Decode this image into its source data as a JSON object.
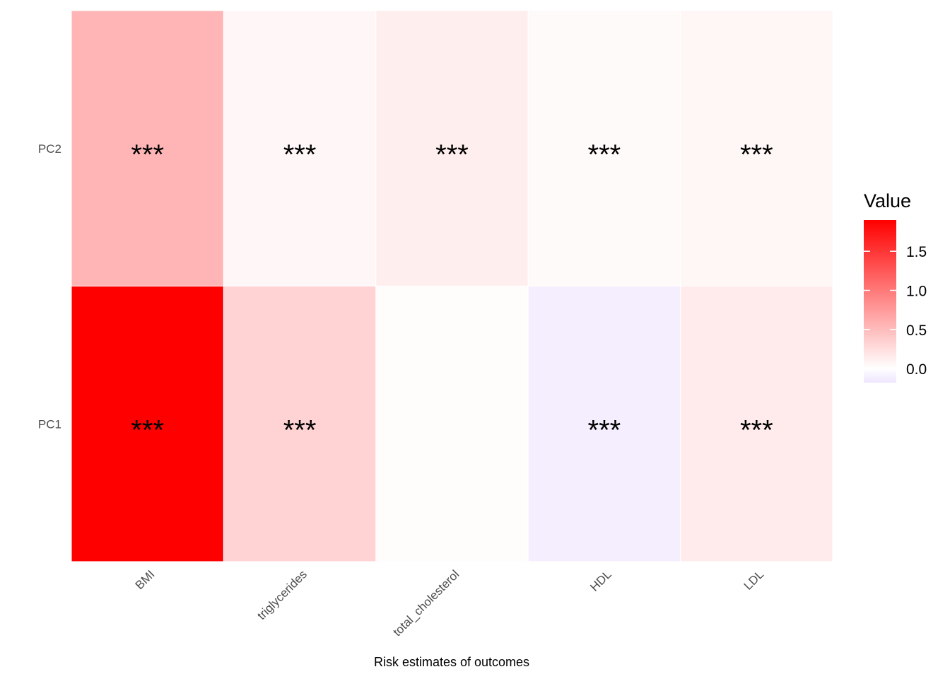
{
  "chart_data": {
    "type": "heatmap",
    "title": "",
    "xlabel": "Risk estimates of outcomes",
    "ylabel": "",
    "x_categories": [
      "BMI",
      "triglycerides",
      "total_cholesterol",
      "HDL",
      "LDL"
    ],
    "y_categories": [
      "PC1",
      "PC2"
    ],
    "values": {
      "PC1": [
        1.9,
        0.33,
        0.02,
        -0.12,
        0.15
      ],
      "PC2": [
        0.55,
        0.06,
        0.13,
        0.04,
        0.07
      ]
    },
    "significance": {
      "PC1": [
        "***",
        "***",
        "",
        "***",
        "***"
      ],
      "PC2": [
        "***",
        "***",
        "***",
        "***",
        "***"
      ]
    },
    "legend": {
      "title": "Value",
      "position": "right",
      "range": [
        -0.18,
        1.9
      ],
      "ticks": [
        0.0,
        0.5,
        1.0,
        1.5
      ],
      "tick_labels": [
        "0.0",
        "0.5",
        "1.0",
        "1.5"
      ],
      "low_color": "#eee6ff",
      "mid_color": "#ffffff",
      "high_color": "#ff0000",
      "midpoint": 0
    },
    "grid": false
  }
}
